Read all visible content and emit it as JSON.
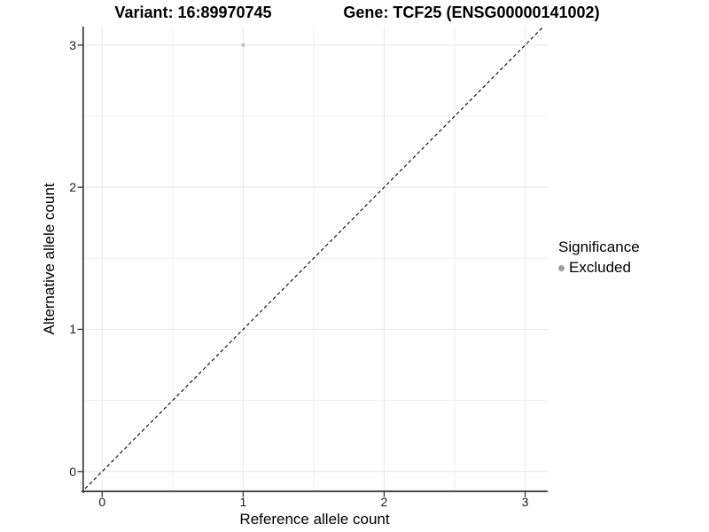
{
  "titles": {
    "left": "Variant: 16:89970745",
    "right": "Gene: TCF25 (ENSG00000141002)"
  },
  "chart_data": {
    "type": "scatter",
    "title": "Variant: 16:89970745 | Gene: TCF25 (ENSG00000141002)",
    "xlabel": "Reference allele count",
    "ylabel": "Alternative allele count",
    "xlim": [
      -0.14,
      3.16
    ],
    "ylim": [
      -0.145,
      3.13
    ],
    "x_ticks": [
      0,
      1,
      2,
      3
    ],
    "y_ticks": [
      0,
      1,
      2,
      3
    ],
    "x_minor_ticks": [
      0.5,
      1.5,
      2.5
    ],
    "y_minor_ticks": [
      0.5,
      1.5,
      2.5
    ],
    "grid": true,
    "legend_position": "right",
    "series": [
      {
        "name": "Excluded",
        "points": [
          {
            "x": 1,
            "y": 3
          }
        ],
        "point_color": "#c2c2c2",
        "point_radius": 2.2
      }
    ],
    "reference_line": {
      "type": "identity",
      "equation": "y = x",
      "style": "dashed",
      "color": "#000000"
    },
    "legend": {
      "title": "Significance",
      "items": [
        {
          "label": "Excluded",
          "color": "#9f9f9f"
        }
      ]
    }
  },
  "colors": {
    "grid_major": "#e7e7e7",
    "grid_minor": "#f1f1f1",
    "axis_line": "#404040",
    "tick_mark": "#333333",
    "background": "#ffffff"
  }
}
